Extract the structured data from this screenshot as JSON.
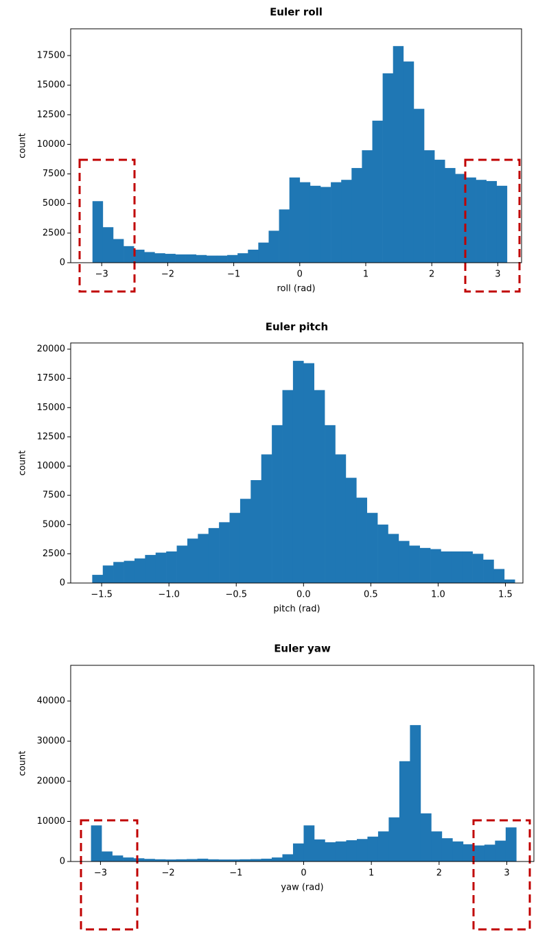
{
  "chart_data": [
    {
      "type": "histogram",
      "title": "Euler roll",
      "xlabel": "roll (rad)",
      "ylabel": "count",
      "color": "#1f77b4",
      "bins": [
        -3.14,
        -2.983,
        -2.826,
        -2.669,
        -2.512,
        -2.355,
        -2.198,
        -2.041,
        -1.884,
        -1.727,
        -1.57,
        -1.413,
        -1.256,
        -1.099,
        -0.942,
        -0.785,
        -0.628,
        -0.471,
        -0.314,
        -0.157,
        0,
        0.157,
        0.314,
        0.471,
        0.628,
        0.785,
        0.942,
        1.099,
        1.256,
        1.413,
        1.57,
        1.727,
        1.884,
        2.041,
        2.198,
        2.355,
        2.512,
        2.669,
        2.826,
        2.983,
        3.14
      ],
      "values": [
        5200,
        3000,
        2000,
        1400,
        1100,
        900,
        800,
        750,
        700,
        700,
        650,
        600,
        600,
        650,
        800,
        1100,
        1700,
        2700,
        4500,
        7200,
        6800,
        6500,
        6400,
        6800,
        7000,
        8000,
        9500,
        12000,
        16000,
        18300,
        17000,
        13000,
        9500,
        8700,
        8000,
        7500,
        7200,
        7000,
        6900,
        6500
      ],
      "xlim": [
        -3.47,
        3.36
      ],
      "ylim": [
        0,
        19760
      ],
      "xticks": [
        {
          "value": -3,
          "label": "−3"
        },
        {
          "value": -2,
          "label": "−2"
        },
        {
          "value": -1,
          "label": "−1"
        },
        0,
        1,
        2,
        3
      ],
      "yticks": [
        0,
        2500,
        5000,
        7500,
        10000,
        12500,
        15000,
        17500
      ]
    },
    {
      "type": "histogram",
      "title": "Euler pitch",
      "xlabel": "pitch (rad)",
      "ylabel": "count",
      "color": "#1f77b4",
      "bins": [
        -1.57,
        -1.4915,
        -1.413,
        -1.3345,
        -1.256,
        -1.1775,
        -1.099,
        -1.0205,
        -0.942,
        -0.8635,
        -0.785,
        -0.7065,
        -0.628,
        -0.5495,
        -0.471,
        -0.3925,
        -0.314,
        -0.2355,
        -0.157,
        -0.0785,
        0,
        0.0785,
        0.157,
        0.2355,
        0.314,
        0.3925,
        0.471,
        0.5495,
        0.628,
        0.7065,
        0.785,
        0.8635,
        0.942,
        1.0205,
        1.099,
        1.1775,
        1.256,
        1.3345,
        1.413,
        1.4915,
        1.57
      ],
      "values": [
        700,
        1500,
        1800,
        1900,
        2100,
        2400,
        2600,
        2700,
        3200,
        3800,
        4200,
        4700,
        5200,
        6000,
        7200,
        8800,
        11000,
        13500,
        16500,
        19000,
        18800,
        16500,
        13500,
        11000,
        9000,
        7300,
        6000,
        5000,
        4200,
        3600,
        3200,
        3000,
        2900,
        2700,
        2700,
        2700,
        2500,
        2000,
        1200,
        300
      ],
      "xlim": [
        -1.73,
        1.63
      ],
      "ylim": [
        0,
        20530
      ],
      "xticks": [
        {
          "value": -1.5,
          "label": "−1.5"
        },
        {
          "value": -1,
          "label": "−1.0"
        },
        {
          "value": -0.5,
          "label": "−0.5"
        },
        {
          "value": 0,
          "label": "0.0"
        },
        0.5,
        {
          "value": 1,
          "label": "1.0"
        },
        1.5
      ],
      "yticks": [
        0,
        2500,
        5000,
        7500,
        10000,
        12500,
        15000,
        17500,
        20000
      ]
    },
    {
      "type": "histogram",
      "title": "Euler yaw",
      "xlabel": "yaw (rad)",
      "ylabel": "count",
      "color": "#1f77b4",
      "bins": [
        -3.14,
        -2.983,
        -2.826,
        -2.669,
        -2.512,
        -2.355,
        -2.198,
        -2.041,
        -1.884,
        -1.727,
        -1.57,
        -1.413,
        -1.256,
        -1.099,
        -0.942,
        -0.785,
        -0.628,
        -0.471,
        -0.314,
        -0.157,
        0,
        0.157,
        0.314,
        0.471,
        0.628,
        0.785,
        0.942,
        1.099,
        1.256,
        1.413,
        1.57,
        1.727,
        1.884,
        2.041,
        2.198,
        2.355,
        2.512,
        2.669,
        2.826,
        2.983,
        3.14
      ],
      "values": [
        9000,
        2500,
        1500,
        1000,
        800,
        650,
        550,
        500,
        550,
        600,
        700,
        550,
        500,
        500,
        550,
        600,
        700,
        1000,
        1800,
        4500,
        9000,
        5500,
        4800,
        5000,
        5300,
        5600,
        6200,
        7500,
        11000,
        25000,
        34000,
        12000,
        7500,
        5800,
        5000,
        4300,
        4000,
        4200,
        5200,
        8500
      ],
      "xlim": [
        -3.44,
        3.4
      ],
      "ylim": [
        0,
        48900
      ],
      "xticks": [
        {
          "value": -3,
          "label": "−3"
        },
        {
          "value": -2,
          "label": "−2"
        },
        {
          "value": -1,
          "label": "−1"
        },
        0,
        1,
        2,
        3
      ],
      "yticks": [
        0,
        10000,
        20000,
        30000,
        40000
      ]
    }
  ]
}
